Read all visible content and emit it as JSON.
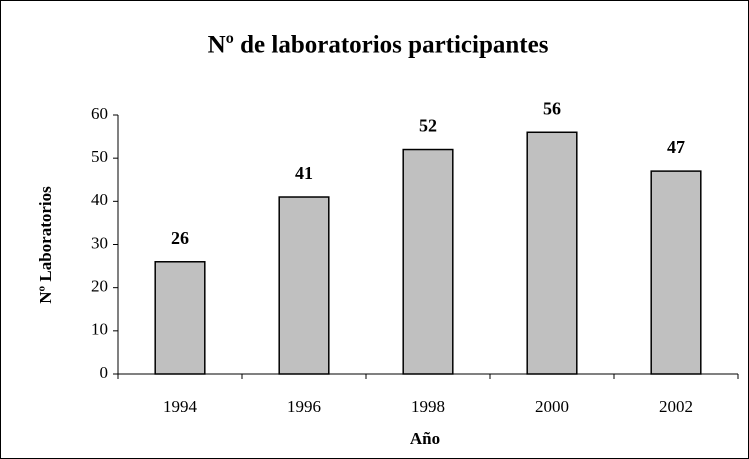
{
  "chart_data": {
    "type": "bar",
    "title": "Nº de laboratorios participantes",
    "x_label": "Año",
    "y_label": "Nº Laboratorios",
    "categories": [
      "1994",
      "1996",
      "1998",
      "2000",
      "2002"
    ],
    "values": [
      26,
      41,
      52,
      56,
      47
    ],
    "color": "#c0c0c0",
    "ylim": [
      0,
      60
    ],
    "yticks": [
      0,
      10,
      20,
      30,
      40,
      50,
      60
    ],
    "grid": false
  }
}
